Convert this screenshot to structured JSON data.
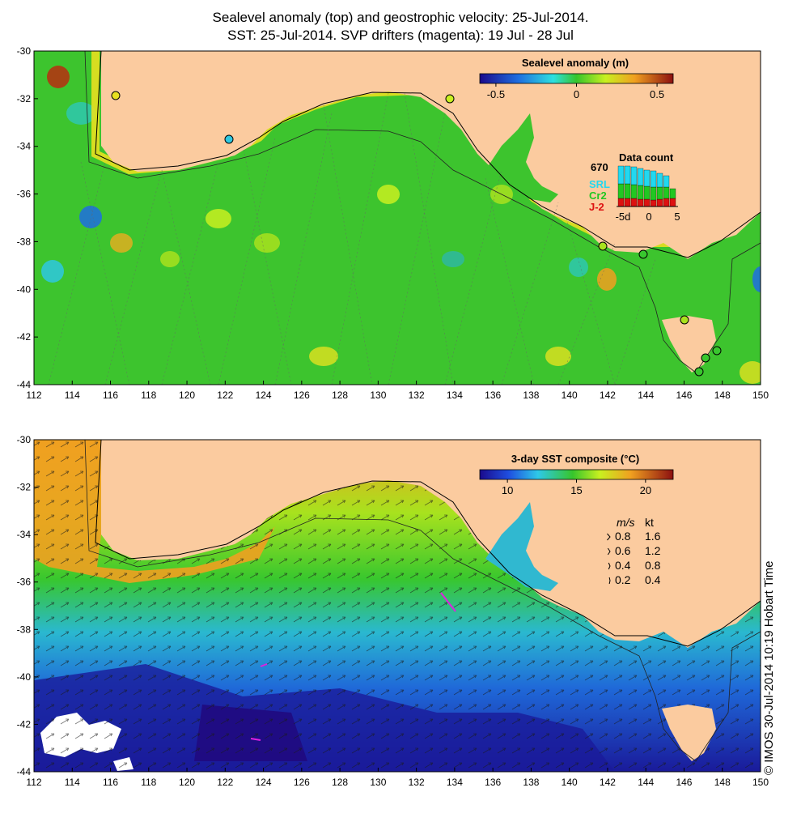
{
  "title_line1": "Sealevel anomaly (top) and geostrophic velocity: 25-Jul-2014.",
  "title_line2": "SST: 25-Jul-2014. SVP drifters (magenta): 19 Jul - 28 Jul",
  "credit": "© IMOS 30-Jul-2014 10:19 Hobart Time",
  "colors": {
    "land": "#fbcb9f",
    "ocean_mid": "#38c72e",
    "coast": "#000000"
  },
  "top_panel": {
    "name": "sealevel-anomaly-map",
    "colorbar": {
      "title": "Sealevel anomaly (m)",
      "ticks": [
        "-0.5",
        "0",
        "0.5"
      ],
      "range": [
        -0.6,
        0.6
      ]
    },
    "data_count": {
      "title": "Data count",
      "max_label": "670",
      "legend": [
        "SRL",
        "Cr2",
        "J-2"
      ],
      "legend_colors": [
        "#22d8f0",
        "#22c722",
        "#dd1111"
      ],
      "x_ticks": [
        "-5d",
        "0",
        "5"
      ]
    }
  },
  "bottom_panel": {
    "name": "sst-composite-map",
    "colorbar": {
      "title": "3-day SST composite (°C)",
      "ticks": [
        "10",
        "15",
        "20"
      ],
      "range": [
        8,
        22
      ]
    },
    "velocity_key": {
      "header_ms": "m/s",
      "header_kt": "kt",
      "rows": [
        {
          "ms": "0.8",
          "kt": "1.6"
        },
        {
          "ms": "0.6",
          "kt": "1.2"
        },
        {
          "ms": "0.4",
          "kt": "0.8"
        },
        {
          "ms": "0.2",
          "kt": "0.4"
        }
      ]
    }
  },
  "axes": {
    "lon_ticks": [
      "112",
      "114",
      "116",
      "118",
      "120",
      "122",
      "124",
      "126",
      "128",
      "130",
      "132",
      "134",
      "136",
      "138",
      "140",
      "142",
      "144",
      "146",
      "148",
      "150"
    ],
    "lat_ticks": [
      "-30",
      "-32",
      "-34",
      "-36",
      "-38",
      "-40",
      "-42",
      "-44"
    ],
    "lon_range": [
      112,
      150
    ],
    "lat_range": [
      -44,
      -30
    ]
  }
}
